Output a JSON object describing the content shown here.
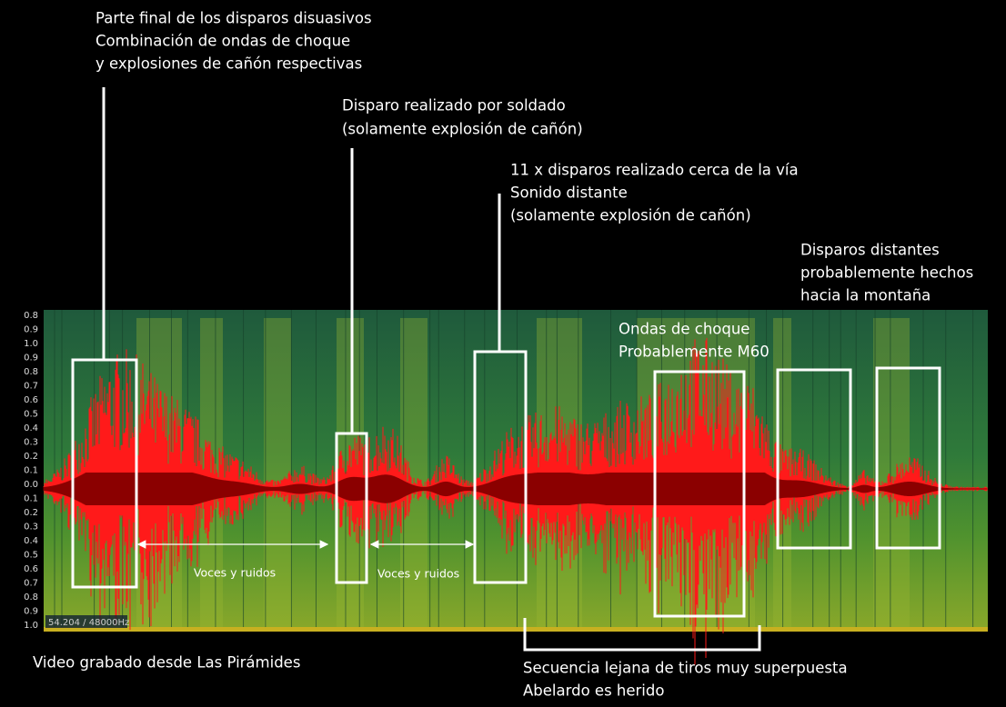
{
  "annotations": [
    {
      "lines": [
        "Parte final de los disparos disuasivos",
        "Combinación  de ondas de choque",
        "y explosiones de cañón respectivas"
      ]
    },
    {
      "lines": [
        "Disparo realizado por soldado",
        "(solamente explosión de cañón)"
      ]
    },
    {
      "lines": [
        "11 x disparos  realizado cerca de la vía",
        "Sonido distante",
        "(solamente explosión de cañón)"
      ]
    },
    {
      "lines": [
        "Disparos distantes",
        "probablemente hechos",
        "hacia la montaña"
      ]
    },
    {
      "lines": [
        "Ondas de choque",
        "Probablemente M60"
      ]
    },
    {
      "lines": [
        "Video grabado desde Las Pirámides"
      ]
    },
    {
      "lines": [
        "Secuencia lejana de tiros muy superpuesta",
        "Abelardo es herido"
      ]
    }
  ],
  "arrow_labels": [
    "Voces y ruidos",
    "Voces y ruidos"
  ],
  "axis_labels": [
    "0.8",
    "0.9",
    "1.0",
    "0.9",
    "0.8",
    "0.7",
    "0.6",
    "0.5",
    "0.4",
    "0.3",
    "0.2",
    "0.1",
    "0.0",
    "0.1",
    "0.2",
    "0.3",
    "0.4",
    "0.5",
    "0.6",
    "0.7",
    "0.8",
    "0.9",
    "1.0"
  ],
  "status": "54.204 / 48000Hz"
}
